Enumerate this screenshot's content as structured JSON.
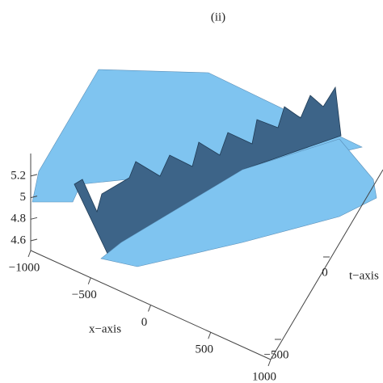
{
  "chart_data": {
    "type": "surface3d",
    "title": "(ii)",
    "x_label": "x−axis",
    "y_label": "t−axis",
    "xlim": [
      -1000,
      1000
    ],
    "xticks": [
      {
        "value": -1000,
        "label": "−1000"
      },
      {
        "value": -500,
        "label": "−500"
      },
      0,
      500,
      1000
    ],
    "ylim": [
      -500,
      500
    ],
    "yticks": [
      {
        "value": -500,
        "label": "−500"
      },
      0
    ],
    "zlim": [
      4.5,
      5.3
    ],
    "zticks": [
      4.6,
      4.8,
      5.0,
      5.2
    ],
    "color": "#7fc4f0"
  }
}
